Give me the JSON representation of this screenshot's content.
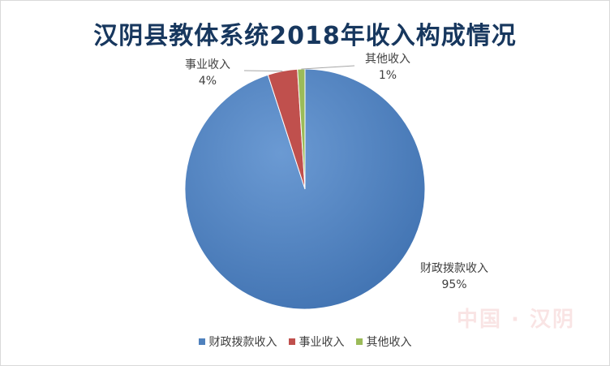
{
  "watermark": "中国 · 汉阴",
  "chart_data": {
    "type": "pie",
    "title": "汉阴县教体系统2018年收入构成情况",
    "slices": [
      {
        "label": "财政拨款收入",
        "value": 95,
        "display": "95%",
        "color": "#4f81bd"
      },
      {
        "label": "事业收入",
        "value": 4,
        "display": "4%",
        "color": "#c0504d"
      },
      {
        "label": "其他收入",
        "value": 1,
        "display": "1%",
        "color": "#9bbb59"
      }
    ],
    "legend_position": "bottom"
  }
}
